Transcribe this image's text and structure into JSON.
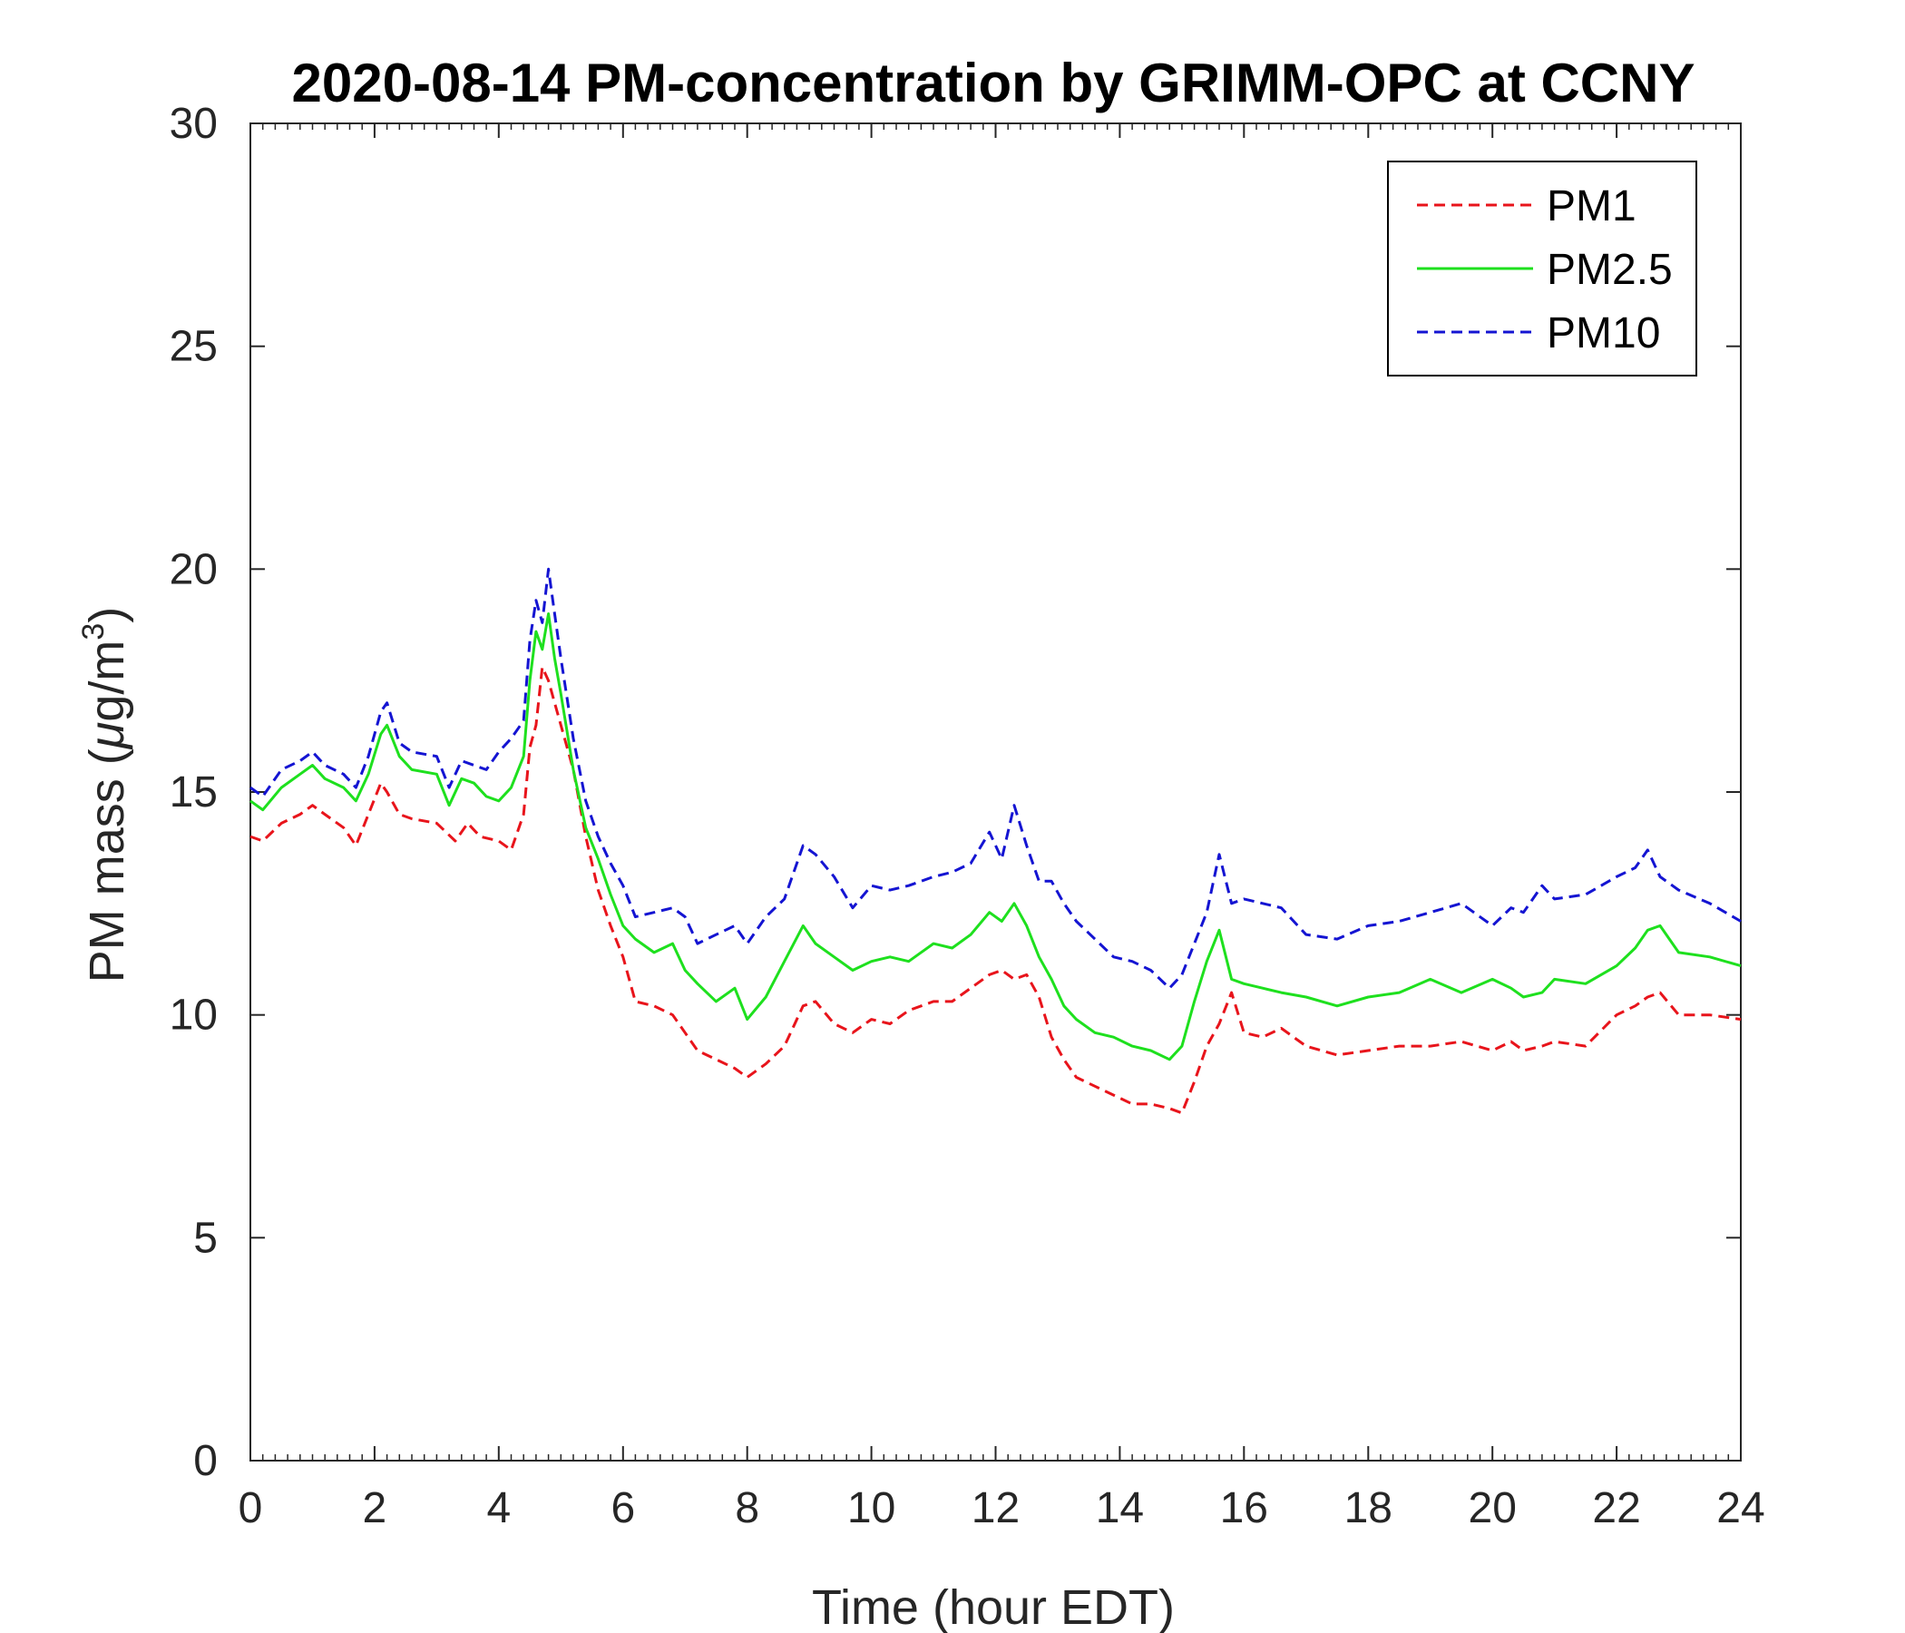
{
  "chart_data": {
    "type": "line",
    "title": "2020-08-14 PM-concentration by GRIMM-OPC at CCNY",
    "xlabel": "Time (hour EDT)",
    "ylabel_main": "PM mass (",
    "ylabel_mu": "μ",
    "ylabel_unit": "g/m",
    "ylabel_sup": "3",
    "ylabel_close": ")",
    "xlim": [
      0,
      24
    ],
    "ylim": [
      0,
      30
    ],
    "xticks": [
      0,
      2,
      4,
      6,
      8,
      10,
      12,
      14,
      16,
      18,
      20,
      22,
      24
    ],
    "yticks": [
      0,
      5,
      10,
      15,
      20,
      25,
      30
    ],
    "grid": false,
    "legend_position": "top-right",
    "series": [
      {
        "name": "PM1",
        "color": "#e8141b",
        "dash": "dashed",
        "x": [
          0,
          0.2,
          0.5,
          0.8,
          1.0,
          1.2,
          1.5,
          1.7,
          1.9,
          2.1,
          2.2,
          2.4,
          2.6,
          3.0,
          3.3,
          3.5,
          3.7,
          4.0,
          4.2,
          4.4,
          4.5,
          4.6,
          4.7,
          4.8,
          4.9,
          5.0,
          5.2,
          5.4,
          5.6,
          5.8,
          6.0,
          6.2,
          6.5,
          6.8,
          7.0,
          7.2,
          7.5,
          7.8,
          8.0,
          8.3,
          8.6,
          8.9,
          9.1,
          9.4,
          9.7,
          10.0,
          10.3,
          10.6,
          11.0,
          11.3,
          11.6,
          11.9,
          12.1,
          12.3,
          12.5,
          12.7,
          12.9,
          13.1,
          13.3,
          13.6,
          13.9,
          14.2,
          14.5,
          14.8,
          15.0,
          15.2,
          15.4,
          15.6,
          15.8,
          16.0,
          16.3,
          16.6,
          17.0,
          17.5,
          18.0,
          18.5,
          19.0,
          19.5,
          20.0,
          20.3,
          20.5,
          20.8,
          21.0,
          21.5,
          22.0,
          22.3,
          22.5,
          22.7,
          23.0,
          23.5,
          24.0
        ],
        "values": [
          14.0,
          13.9,
          14.3,
          14.5,
          14.7,
          14.5,
          14.2,
          13.8,
          14.5,
          15.2,
          15.0,
          14.5,
          14.4,
          14.3,
          13.9,
          14.3,
          14.0,
          13.9,
          13.7,
          14.5,
          16.0,
          16.5,
          17.8,
          17.5,
          17.0,
          16.5,
          15.5,
          14.0,
          12.8,
          12.0,
          11.3,
          10.3,
          10.2,
          10.0,
          9.6,
          9.2,
          9.0,
          8.8,
          8.6,
          8.9,
          9.3,
          10.2,
          10.3,
          9.8,
          9.6,
          9.9,
          9.8,
          10.1,
          10.3,
          10.3,
          10.6,
          10.9,
          11.0,
          10.8,
          10.9,
          10.4,
          9.5,
          9.0,
          8.6,
          8.4,
          8.2,
          8.0,
          8.0,
          7.9,
          7.8,
          8.5,
          9.3,
          9.8,
          10.5,
          9.6,
          9.5,
          9.7,
          9.3,
          9.1,
          9.2,
          9.3,
          9.3,
          9.4,
          9.2,
          9.4,
          9.2,
          9.3,
          9.4,
          9.3,
          10.0,
          10.2,
          10.4,
          10.5,
          10.0,
          10.0,
          9.9
        ]
      },
      {
        "name": "PM2.5",
        "color": "#1ee01e",
        "dash": "solid",
        "x": [
          0,
          0.2,
          0.5,
          0.8,
          1.0,
          1.2,
          1.5,
          1.7,
          1.9,
          2.1,
          2.2,
          2.4,
          2.6,
          3.0,
          3.2,
          3.4,
          3.6,
          3.8,
          4.0,
          4.2,
          4.4,
          4.5,
          4.6,
          4.7,
          4.8,
          4.9,
          5.0,
          5.2,
          5.4,
          5.6,
          5.8,
          6.0,
          6.2,
          6.5,
          6.8,
          7.0,
          7.2,
          7.5,
          7.8,
          8.0,
          8.3,
          8.6,
          8.9,
          9.1,
          9.4,
          9.7,
          10.0,
          10.3,
          10.6,
          11.0,
          11.3,
          11.6,
          11.9,
          12.1,
          12.3,
          12.5,
          12.7,
          12.9,
          13.1,
          13.3,
          13.6,
          13.9,
          14.2,
          14.5,
          14.8,
          15.0,
          15.2,
          15.4,
          15.6,
          15.8,
          16.0,
          16.3,
          16.6,
          17.0,
          17.5,
          18.0,
          18.5,
          19.0,
          19.5,
          20.0,
          20.3,
          20.5,
          20.8,
          21.0,
          21.5,
          22.0,
          22.3,
          22.5,
          22.7,
          23.0,
          23.5,
          24.0
        ],
        "values": [
          14.8,
          14.6,
          15.1,
          15.4,
          15.6,
          15.3,
          15.1,
          14.8,
          15.4,
          16.3,
          16.5,
          15.8,
          15.5,
          15.4,
          14.7,
          15.3,
          15.2,
          14.9,
          14.8,
          15.1,
          15.8,
          17.5,
          18.6,
          18.2,
          19.0,
          18.0,
          17.2,
          15.5,
          14.2,
          13.5,
          12.7,
          12.0,
          11.7,
          11.4,
          11.6,
          11.0,
          10.7,
          10.3,
          10.6,
          9.9,
          10.4,
          11.2,
          12.0,
          11.6,
          11.3,
          11.0,
          11.2,
          11.3,
          11.2,
          11.6,
          11.5,
          11.8,
          12.3,
          12.1,
          12.5,
          12.0,
          11.3,
          10.8,
          10.2,
          9.9,
          9.6,
          9.5,
          9.3,
          9.2,
          9.0,
          9.3,
          10.3,
          11.2,
          11.9,
          10.8,
          10.7,
          10.6,
          10.5,
          10.4,
          10.2,
          10.4,
          10.5,
          10.8,
          10.5,
          10.8,
          10.6,
          10.4,
          10.5,
          10.8,
          10.7,
          11.1,
          11.5,
          11.9,
          12.0,
          11.4,
          11.3,
          11.1
        ]
      },
      {
        "name": "PM10",
        "color": "#1414d2",
        "dash": "dashed",
        "x": [
          0,
          0.2,
          0.5,
          0.8,
          1.0,
          1.2,
          1.5,
          1.7,
          1.9,
          2.1,
          2.2,
          2.4,
          2.6,
          3.0,
          3.2,
          3.4,
          3.6,
          3.8,
          4.0,
          4.2,
          4.4,
          4.5,
          4.6,
          4.7,
          4.8,
          4.9,
          5.0,
          5.2,
          5.4,
          5.6,
          5.8,
          6.0,
          6.2,
          6.5,
          6.8,
          7.0,
          7.2,
          7.5,
          7.8,
          8.0,
          8.3,
          8.6,
          8.9,
          9.1,
          9.4,
          9.7,
          10.0,
          10.3,
          10.6,
          11.0,
          11.3,
          11.6,
          11.9,
          12.1,
          12.3,
          12.5,
          12.7,
          12.9,
          13.1,
          13.3,
          13.6,
          13.9,
          14.2,
          14.5,
          14.8,
          15.0,
          15.2,
          15.4,
          15.6,
          15.8,
          16.0,
          16.3,
          16.6,
          17.0,
          17.5,
          18.0,
          18.5,
          19.0,
          19.5,
          20.0,
          20.3,
          20.5,
          20.8,
          21.0,
          21.5,
          22.0,
          22.3,
          22.5,
          22.7,
          23.0,
          23.5,
          24.0
        ],
        "values": [
          15.1,
          14.9,
          15.5,
          15.7,
          15.9,
          15.6,
          15.4,
          15.1,
          15.8,
          16.8,
          17.0,
          16.1,
          15.9,
          15.8,
          15.1,
          15.7,
          15.6,
          15.5,
          15.9,
          16.2,
          16.6,
          18.4,
          19.3,
          18.8,
          20.0,
          19.0,
          18.0,
          16.2,
          14.8,
          14.0,
          13.4,
          12.9,
          12.2,
          12.3,
          12.4,
          12.2,
          11.6,
          11.8,
          12.0,
          11.6,
          12.2,
          12.6,
          13.8,
          13.6,
          13.1,
          12.4,
          12.9,
          12.8,
          12.9,
          13.1,
          13.2,
          13.4,
          14.1,
          13.5,
          14.7,
          13.8,
          13.0,
          13.0,
          12.5,
          12.1,
          11.7,
          11.3,
          11.2,
          11.0,
          10.6,
          10.9,
          11.6,
          12.3,
          13.6,
          12.5,
          12.6,
          12.5,
          12.4,
          11.8,
          11.7,
          12.0,
          12.1,
          12.3,
          12.5,
          12.0,
          12.4,
          12.3,
          12.9,
          12.6,
          12.7,
          13.1,
          13.3,
          13.7,
          13.1,
          12.8,
          12.5,
          12.1
        ]
      }
    ]
  }
}
